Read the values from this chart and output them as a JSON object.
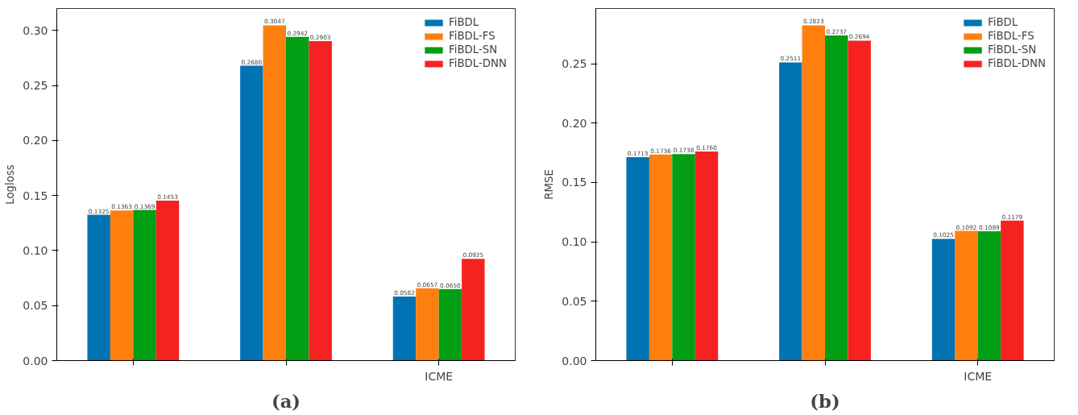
{
  "chart_data": [
    {
      "type": "bar",
      "title": "(a)",
      "ylabel": "Logloss",
      "categories": [
        null,
        null,
        "ICME"
      ],
      "series": [
        {
          "name": "FiBDL",
          "color": "#0173b2",
          "values": [
            0.1325,
            0.268,
            0.0582
          ]
        },
        {
          "name": "FiBDL-FS",
          "color": "#ff7f0e",
          "values": [
            0.1363,
            0.3047,
            0.0657
          ]
        },
        {
          "name": "FiBDL-SN",
          "color": "#029e13",
          "values": [
            0.1369,
            0.2942,
            0.065
          ]
        },
        {
          "name": "FiBDL-DNN",
          "color": "#f62222",
          "values": [
            0.1453,
            0.2903,
            0.0925
          ]
        }
      ],
      "value_labels": [
        [
          "0.1325",
          "0.2680",
          "0.0582"
        ],
        [
          "0.1363",
          "0.3047",
          "0.0657"
        ],
        [
          "0.1369",
          "0.2942",
          "0.0650"
        ],
        [
          "0.1453",
          "0.2903",
          "0.0925"
        ]
      ],
      "ylim": [
        0,
        0.32
      ],
      "yticks": [
        {
          "value": 0,
          "label": "0.00"
        },
        0.05,
        {
          "value": 0.1,
          "label": "0.10"
        },
        0.15,
        {
          "value": 0.2,
          "label": "0.20"
        },
        0.25,
        {
          "value": 0.3,
          "label": "0.30"
        }
      ],
      "grid": false,
      "legend": "top right"
    },
    {
      "type": "bar",
      "title": "(b)",
      "ylabel": "RMSE",
      "categories": [
        null,
        null,
        "ICME"
      ],
      "series": [
        {
          "name": "FiBDL",
          "color": "#0173b2",
          "values": [
            0.1713,
            0.2511,
            0.1025
          ]
        },
        {
          "name": "FiBDL-FS",
          "color": "#ff7f0e",
          "values": [
            0.1736,
            0.2823,
            0.1092
          ]
        },
        {
          "name": "FiBDL-SN",
          "color": "#029e13",
          "values": [
            0.1738,
            0.2737,
            0.1089
          ]
        },
        {
          "name": "FiBDL-DNN",
          "color": "#f62222",
          "values": [
            0.176,
            0.2694,
            0.1179
          ]
        }
      ],
      "value_labels": [
        [
          "0.1713",
          "0.2511",
          "0.1025"
        ],
        [
          "0.1736",
          "0.2823",
          "0.1092"
        ],
        [
          "0.1738",
          "0.2737",
          "0.1089"
        ],
        [
          "0.1760",
          "0.2694",
          "0.1179"
        ]
      ],
      "ylim": [
        0,
        0.2965
      ],
      "yticks": [
        {
          "value": 0,
          "label": "0.00"
        },
        0.05,
        {
          "value": 0.1,
          "label": "0.10"
        },
        0.15,
        {
          "value": 0.2,
          "label": "0.20"
        },
        0.25
      ],
      "grid": false,
      "legend": "top right"
    }
  ]
}
